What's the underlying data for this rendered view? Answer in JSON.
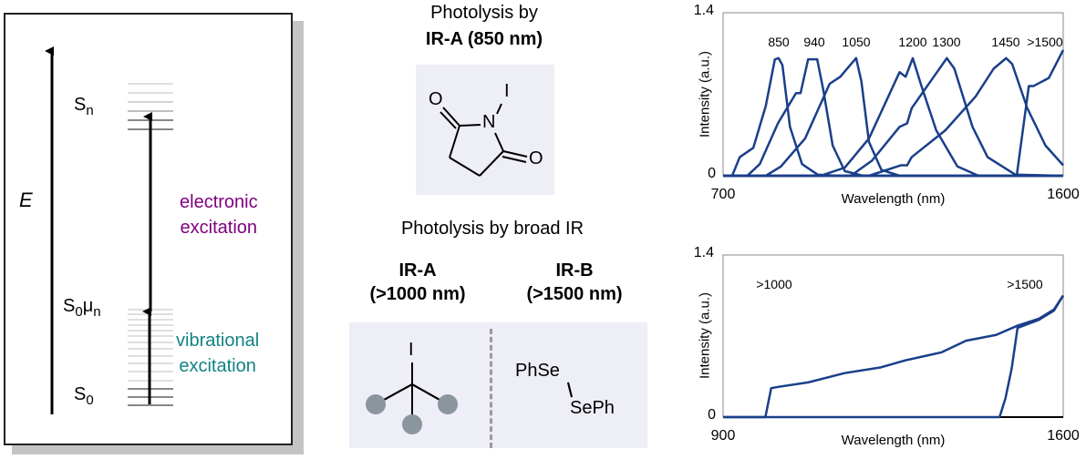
{
  "energy_diagram": {
    "axis_label": "E",
    "sn": {
      "base": "S",
      "sub": "n"
    },
    "s0mun": {
      "base": "S",
      "sub1": "0",
      "mu": "μ",
      "sub2": "n"
    },
    "s0": {
      "base": "S",
      "sub": "0"
    },
    "electronic": [
      "electronic",
      "excitation"
    ],
    "vibrational": [
      "vibrational",
      "excitation"
    ],
    "colors": {
      "electronic": "#800080",
      "vibrational": "#128282"
    }
  },
  "middle": {
    "title1": "Photolysis by",
    "title1_bold": "IR-A (850 nm)",
    "nis": {
      "O1": "O",
      "O2": "O",
      "N": "N",
      "I": "I"
    },
    "title2": "Photolysis by broad IR",
    "col_a": [
      "IR-A",
      "(>1000 nm)"
    ],
    "col_b": [
      "IR-B",
      "(>1500 nm)"
    ],
    "alkyl_iodide": {
      "I": "I"
    },
    "diselenide": [
      "PhSe",
      "SePh"
    ]
  },
  "chart_data": [
    {
      "type": "line",
      "xlabel": "Wavelength (nm)",
      "ylabel": "Intensity (a.u.)",
      "xlim": [
        700,
        1600
      ],
      "ylim": [
        0,
        1.4
      ],
      "xticks": [
        "700",
        "1600"
      ],
      "yticks": [
        "0",
        "1.4"
      ],
      "color": "#1a3f8a",
      "series": [
        {
          "name": "850",
          "points": [
            [
              700,
              0
            ],
            [
              724,
              0
            ],
            [
              744,
              0.16
            ],
            [
              780,
              0.24
            ],
            [
              813,
              0.6
            ],
            [
              837,
              1.0
            ],
            [
              847,
              1.01
            ],
            [
              857,
              0.95
            ],
            [
              877,
              0.42
            ],
            [
              909,
              0.1
            ],
            [
              950,
              0.01
            ],
            [
              1000,
              0
            ],
            [
              1600,
              0
            ]
          ]
        },
        {
          "name": "940",
          "points": [
            [
              700,
              0
            ],
            [
              764,
              0
            ],
            [
              797,
              0.1
            ],
            [
              845,
              0.45
            ],
            [
              893,
              0.71
            ],
            [
              905,
              0.71
            ],
            [
              925,
              1.0
            ],
            [
              949,
              1.0
            ],
            [
              965,
              0.74
            ],
            [
              990,
              0.26
            ],
            [
              1022,
              0.04
            ],
            [
              1070,
              0
            ],
            [
              1600,
              0
            ]
          ]
        },
        {
          "name": "1050",
          "points": [
            [
              700,
              0
            ],
            [
              813,
              0
            ],
            [
              853,
              0.08
            ],
            [
              917,
              0.32
            ],
            [
              982,
              0.79
            ],
            [
              1010,
              0.85
            ],
            [
              1052,
              1.01
            ],
            [
              1066,
              0.81
            ],
            [
              1086,
              0.29
            ],
            [
              1119,
              0.05
            ],
            [
              1167,
              0
            ],
            [
              1600,
              0
            ]
          ]
        },
        {
          "name": "1200",
          "points": [
            [
              700,
              0
            ],
            [
              958,
              0
            ],
            [
              1022,
              0.07
            ],
            [
              1086,
              0.32
            ],
            [
              1167,
              0.89
            ],
            [
              1183,
              0.85
            ],
            [
              1202,
              1.01
            ],
            [
              1223,
              0.79
            ],
            [
              1264,
              0.39
            ],
            [
              1320,
              0.08
            ],
            [
              1376,
              0
            ],
            [
              1600,
              0
            ]
          ]
        },
        {
          "name": "1300",
          "points": [
            [
              700,
              0
            ],
            [
              1038,
              0
            ],
            [
              1094,
              0.13
            ],
            [
              1167,
              0.42
            ],
            [
              1187,
              0.45
            ],
            [
              1199,
              0.58
            ],
            [
              1292,
              1.01
            ],
            [
              1312,
              0.92
            ],
            [
              1360,
              0.42
            ],
            [
              1400,
              0.16
            ],
            [
              1473,
              0.01
            ],
            [
              1600,
              0
            ]
          ]
        },
        {
          "name": "1450",
          "points": [
            [
              700,
              0
            ],
            [
              1086,
              0
            ],
            [
              1171,
              0.09
            ],
            [
              1187,
              0.09
            ],
            [
              1199,
              0.16
            ],
            [
              1288,
              0.39
            ],
            [
              1368,
              0.68
            ],
            [
              1416,
              0.92
            ],
            [
              1449,
              1.01
            ],
            [
              1465,
              0.96
            ],
            [
              1505,
              0.58
            ],
            [
              1553,
              0.26
            ],
            [
              1600,
              0.09
            ]
          ]
        },
        {
          "name": ">1500",
          "points": [
            [
              700,
              0
            ],
            [
              1477,
              0
            ],
            [
              1489,
              0.29
            ],
            [
              1509,
              0.77
            ],
            [
              1521,
              0.77
            ],
            [
              1562,
              0.84
            ],
            [
              1600,
              1.08
            ]
          ]
        }
      ]
    },
    {
      "type": "line",
      "xlabel": "Wavelength (nm)",
      "ylabel": "Intensity (a.u.)",
      "xlim": [
        900,
        1600
      ],
      "ylim": [
        0,
        1.4
      ],
      "xticks": [
        "900",
        "1600"
      ],
      "yticks": [
        "0",
        "1.4"
      ],
      "color": "#1a3f8a",
      "series": [
        {
          "name": ">1000",
          "points": [
            [
              900,
              0
            ],
            [
              987,
              0
            ],
            [
              999,
              0.25
            ],
            [
              1012,
              0.26
            ],
            [
              1075,
              0.3
            ],
            [
              1150,
              0.38
            ],
            [
              1225,
              0.43
            ],
            [
              1275,
              0.49
            ],
            [
              1350,
              0.56
            ],
            [
              1400,
              0.66
            ],
            [
              1462,
              0.71
            ],
            [
              1506,
              0.79
            ],
            [
              1550,
              0.85
            ],
            [
              1581,
              0.93
            ],
            [
              1600,
              1.05
            ]
          ]
        },
        {
          "name": ">1500",
          "points": [
            [
              900,
              0
            ],
            [
              1469,
              0
            ],
            [
              1481,
              0.16
            ],
            [
              1494,
              0.42
            ],
            [
              1506,
              0.77
            ],
            [
              1550,
              0.84
            ],
            [
              1581,
              0.92
            ],
            [
              1600,
              1.05
            ]
          ]
        }
      ]
    }
  ]
}
